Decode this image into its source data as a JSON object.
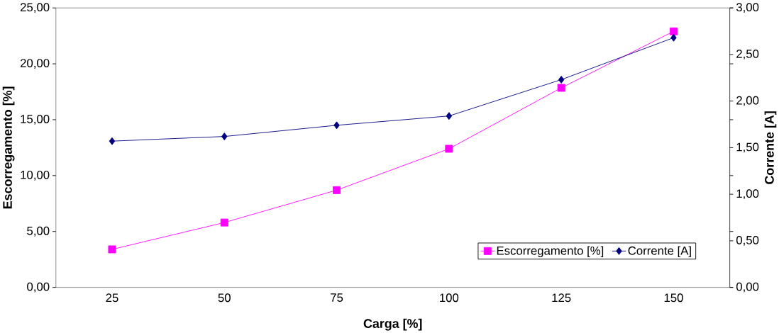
{
  "chart_data": {
    "type": "line",
    "xlabel": "Carga [%]",
    "ylabel": "Escorregamento [%]",
    "y2label": "Corrente [A]",
    "categories": [
      "25",
      "50",
      "75",
      "100",
      "125",
      "150"
    ],
    "series": [
      {
        "name": "Escorregamento [%]",
        "color": "#ff00ff",
        "marker": "square",
        "values": [
          3.4,
          5.8,
          8.7,
          12.4,
          17.85,
          22.9
        ]
      },
      {
        "name": "Corrente [A]",
        "color": "#000080",
        "marker": "diamond",
        "axis": "y2",
        "values": [
          1.57,
          1.62,
          1.74,
          1.84,
          2.23,
          2.68
        ]
      }
    ],
    "ylim": [
      0,
      25
    ],
    "yticks": [
      {
        "value": 0,
        "label": "0,00"
      },
      {
        "value": 5,
        "label": "5,00"
      },
      {
        "value": 10,
        "label": "10,00"
      },
      {
        "value": 15,
        "label": "15,00"
      },
      {
        "value": 20,
        "label": "20,00"
      },
      {
        "value": 25,
        "label": "25,00"
      }
    ],
    "y2lim": [
      0,
      3
    ],
    "y2ticks": [
      {
        "value": 0,
        "label": "0,00"
      },
      {
        "value": 0.5,
        "label": "0,50"
      },
      {
        "value": 1,
        "label": "1,00"
      },
      {
        "value": 1.5,
        "label": "1,50"
      },
      {
        "value": 2,
        "label": "2,00"
      },
      {
        "value": 2.5,
        "label": "2,50"
      },
      {
        "value": 3,
        "label": "3,00"
      }
    ],
    "legend": "bottom right",
    "grid": false
  }
}
